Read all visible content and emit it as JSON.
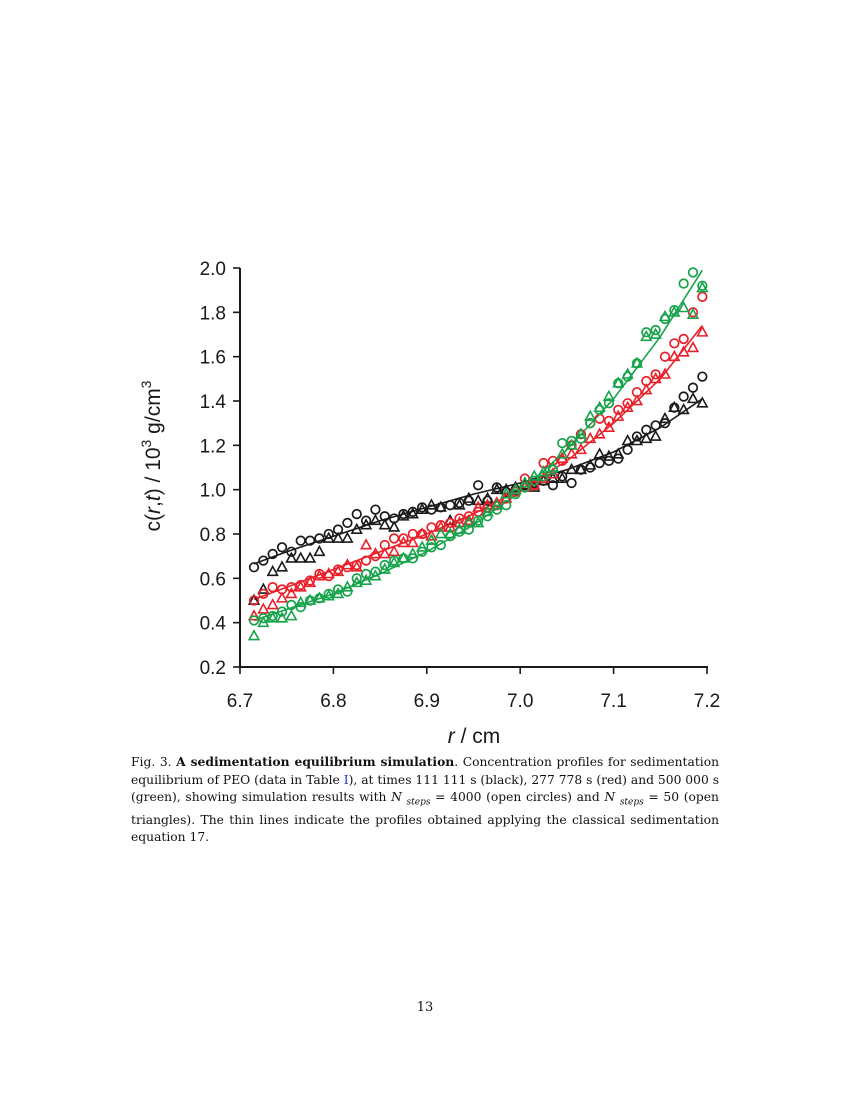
{
  "chart_data": {
    "type": "scatter",
    "xlabel_italic": "r",
    "xlabel_rest": " / cm",
    "ylabel_parts": [
      "c(",
      "r",
      ",",
      "t",
      ")  / 10",
      "3",
      " g/cm",
      "3"
    ],
    "xlim": [
      6.7,
      7.2
    ],
    "ylim": [
      0.2,
      2.0
    ],
    "xticks": [
      "6.7",
      "6.8",
      "6.9",
      "7.0",
      "7.1",
      "7.2"
    ],
    "yticks": [
      "0.2",
      "0.4",
      "0.6",
      "0.8",
      "1.0",
      "1.2",
      "1.4",
      "1.6",
      "1.8",
      "2.0"
    ],
    "grid": false,
    "legend": "none",
    "colors": {
      "black": "#1a1a1a",
      "red": "#e8202a",
      "green": "#16a34a"
    },
    "series": [
      {
        "color": "black",
        "marker": "circle",
        "x": [
          6.715,
          6.725,
          6.735,
          6.745,
          6.755,
          6.765,
          6.775,
          6.785,
          6.795,
          6.805,
          6.815,
          6.825,
          6.835,
          6.845,
          6.855,
          6.865,
          6.875,
          6.885,
          6.895,
          6.905,
          6.915,
          6.925,
          6.935,
          6.945,
          6.955,
          6.965,
          6.975,
          6.985,
          6.995,
          7.005,
          7.015,
          7.025,
          7.035,
          7.045,
          7.055,
          7.065,
          7.075,
          7.085,
          7.095,
          7.105,
          7.115,
          7.125,
          7.135,
          7.145,
          7.155,
          7.165,
          7.175,
          7.185,
          7.195
        ],
        "y": [
          0.65,
          0.68,
          0.71,
          0.74,
          0.72,
          0.77,
          0.77,
          0.78,
          0.8,
          0.82,
          0.85,
          0.89,
          0.86,
          0.91,
          0.88,
          0.87,
          0.89,
          0.9,
          0.92,
          0.91,
          0.92,
          0.93,
          0.94,
          0.95,
          1.02,
          0.95,
          1.01,
          0.99,
          1.0,
          1.02,
          1.03,
          1.04,
          1.02,
          1.06,
          1.03,
          1.09,
          1.1,
          1.12,
          1.13,
          1.14,
          1.18,
          1.24,
          1.27,
          1.29,
          1.3,
          1.37,
          1.42,
          1.46,
          1.51
        ]
      },
      {
        "color": "black",
        "marker": "triangle",
        "x": [
          6.715,
          6.725,
          6.735,
          6.745,
          6.755,
          6.765,
          6.775,
          6.785,
          6.795,
          6.805,
          6.815,
          6.825,
          6.835,
          6.845,
          6.855,
          6.865,
          6.875,
          6.885,
          6.895,
          6.905,
          6.915,
          6.925,
          6.935,
          6.945,
          6.955,
          6.965,
          6.975,
          6.985,
          6.995,
          7.005,
          7.015,
          7.025,
          7.035,
          7.045,
          7.055,
          7.065,
          7.075,
          7.085,
          7.095,
          7.105,
          7.115,
          7.125,
          7.135,
          7.145,
          7.155,
          7.165,
          7.175,
          7.185,
          7.195
        ],
        "y": [
          0.5,
          0.55,
          0.63,
          0.65,
          0.69,
          0.69,
          0.69,
          0.72,
          0.78,
          0.78,
          0.78,
          0.82,
          0.84,
          0.86,
          0.84,
          0.83,
          0.88,
          0.89,
          0.91,
          0.93,
          0.92,
          0.86,
          0.93,
          0.96,
          0.95,
          0.96,
          1.0,
          1.0,
          1.01,
          1.02,
          1.01,
          1.04,
          1.05,
          1.05,
          1.09,
          1.09,
          1.11,
          1.16,
          1.15,
          1.16,
          1.22,
          1.22,
          1.23,
          1.24,
          1.32,
          1.37,
          1.36,
          1.41,
          1.39
        ]
      },
      {
        "color": "red",
        "marker": "circle",
        "x": [
          6.715,
          6.725,
          6.735,
          6.745,
          6.755,
          6.765,
          6.775,
          6.785,
          6.795,
          6.805,
          6.815,
          6.825,
          6.835,
          6.845,
          6.855,
          6.865,
          6.875,
          6.885,
          6.895,
          6.905,
          6.915,
          6.925,
          6.935,
          6.945,
          6.955,
          6.965,
          6.975,
          6.985,
          6.995,
          7.005,
          7.015,
          7.025,
          7.035,
          7.045,
          7.055,
          7.065,
          7.075,
          7.085,
          7.095,
          7.105,
          7.115,
          7.125,
          7.135,
          7.145,
          7.155,
          7.165,
          7.175,
          7.185,
          7.195
        ],
        "y": [
          0.5,
          0.53,
          0.56,
          0.55,
          0.56,
          0.57,
          0.59,
          0.62,
          0.61,
          0.64,
          0.65,
          0.66,
          0.68,
          0.7,
          0.75,
          0.78,
          0.78,
          0.8,
          0.8,
          0.83,
          0.84,
          0.85,
          0.87,
          0.88,
          0.9,
          0.92,
          0.93,
          0.96,
          0.99,
          1.05,
          1.02,
          1.12,
          1.13,
          1.13,
          1.2,
          1.25,
          1.3,
          1.32,
          1.31,
          1.36,
          1.39,
          1.44,
          1.49,
          1.52,
          1.6,
          1.66,
          1.68,
          1.8,
          1.87
        ]
      },
      {
        "color": "red",
        "marker": "triangle",
        "x": [
          6.715,
          6.725,
          6.735,
          6.745,
          6.755,
          6.765,
          6.775,
          6.785,
          6.795,
          6.805,
          6.815,
          6.825,
          6.835,
          6.845,
          6.855,
          6.865,
          6.875,
          6.885,
          6.895,
          6.905,
          6.915,
          6.925,
          6.935,
          6.945,
          6.955,
          6.965,
          6.975,
          6.985,
          6.995,
          7.005,
          7.015,
          7.025,
          7.035,
          7.045,
          7.055,
          7.065,
          7.075,
          7.085,
          7.095,
          7.105,
          7.115,
          7.125,
          7.135,
          7.145,
          7.155,
          7.165,
          7.175,
          7.185,
          7.195
        ],
        "y": [
          0.43,
          0.46,
          0.48,
          0.51,
          0.53,
          0.56,
          0.58,
          0.61,
          0.62,
          0.63,
          0.66,
          0.65,
          0.75,
          0.71,
          0.71,
          0.72,
          0.76,
          0.76,
          0.8,
          0.79,
          0.83,
          0.83,
          0.85,
          0.86,
          0.92,
          0.93,
          0.94,
          0.96,
          1.0,
          1.01,
          1.02,
          1.05,
          1.07,
          1.14,
          1.16,
          1.18,
          1.23,
          1.25,
          1.28,
          1.33,
          1.37,
          1.4,
          1.45,
          1.5,
          1.52,
          1.6,
          1.62,
          1.64,
          1.71
        ]
      },
      {
        "color": "green",
        "marker": "circle",
        "x": [
          6.715,
          6.725,
          6.735,
          6.745,
          6.755,
          6.765,
          6.775,
          6.785,
          6.795,
          6.805,
          6.815,
          6.825,
          6.835,
          6.845,
          6.855,
          6.865,
          6.875,
          6.885,
          6.895,
          6.905,
          6.915,
          6.925,
          6.935,
          6.945,
          6.955,
          6.965,
          6.975,
          6.985,
          6.995,
          7.005,
          7.015,
          7.025,
          7.035,
          7.045,
          7.055,
          7.065,
          7.075,
          7.085,
          7.095,
          7.105,
          7.115,
          7.125,
          7.135,
          7.145,
          7.155,
          7.165,
          7.175,
          7.185,
          7.195
        ],
        "y": [
          0.41,
          0.42,
          0.43,
          0.45,
          0.48,
          0.47,
          0.5,
          0.51,
          0.53,
          0.55,
          0.54,
          0.6,
          0.62,
          0.63,
          0.66,
          0.68,
          0.69,
          0.69,
          0.72,
          0.74,
          0.75,
          0.79,
          0.81,
          0.82,
          0.86,
          0.88,
          0.91,
          0.93,
          0.98,
          1.01,
          1.04,
          1.06,
          1.09,
          1.21,
          1.22,
          1.23,
          1.3,
          1.36,
          1.39,
          1.48,
          1.51,
          1.57,
          1.71,
          1.72,
          1.77,
          1.81,
          1.93,
          1.98,
          1.92
        ]
      },
      {
        "color": "green",
        "marker": "triangle",
        "x": [
          6.715,
          6.725,
          6.735,
          6.745,
          6.755,
          6.765,
          6.775,
          6.785,
          6.795,
          6.805,
          6.815,
          6.825,
          6.835,
          6.845,
          6.855,
          6.865,
          6.875,
          6.885,
          6.895,
          6.905,
          6.915,
          6.925,
          6.935,
          6.945,
          6.955,
          6.965,
          6.975,
          6.985,
          6.995,
          7.005,
          7.015,
          7.025,
          7.035,
          7.045,
          7.055,
          7.065,
          7.075,
          7.085,
          7.095,
          7.105,
          7.115,
          7.125,
          7.135,
          7.145,
          7.155,
          7.165,
          7.175,
          7.185,
          7.195
        ],
        "y": [
          0.34,
          0.4,
          0.42,
          0.42,
          0.43,
          0.49,
          0.5,
          0.51,
          0.52,
          0.53,
          0.56,
          0.58,
          0.59,
          0.61,
          0.64,
          0.67,
          0.69,
          0.71,
          0.74,
          0.77,
          0.8,
          0.8,
          0.82,
          0.85,
          0.85,
          0.9,
          0.93,
          0.98,
          1.0,
          1.03,
          1.06,
          1.08,
          1.1,
          1.16,
          1.2,
          1.25,
          1.33,
          1.37,
          1.42,
          1.48,
          1.52,
          1.57,
          1.69,
          1.7,
          1.78,
          1.8,
          1.82,
          1.79,
          1.91
        ]
      }
    ],
    "lines": [
      {
        "color": "black",
        "x": [
          6.715,
          6.75,
          6.8,
          6.85,
          6.9,
          6.95,
          7.0,
          7.05,
          7.1,
          7.15,
          7.195
        ],
        "y": [
          0.665,
          0.72,
          0.79,
          0.86,
          0.92,
          0.98,
          1.03,
          1.09,
          1.17,
          1.28,
          1.41
        ]
      },
      {
        "color": "red",
        "x": [
          6.715,
          6.75,
          6.8,
          6.85,
          6.9,
          6.95,
          7.0,
          7.05,
          7.1,
          7.15,
          7.195
        ],
        "y": [
          0.505,
          0.56,
          0.64,
          0.72,
          0.8,
          0.89,
          1.0,
          1.13,
          1.3,
          1.5,
          1.74
        ]
      },
      {
        "color": "green",
        "x": [
          6.715,
          6.75,
          6.8,
          6.85,
          6.9,
          6.95,
          7.0,
          7.05,
          7.1,
          7.15,
          7.195
        ],
        "y": [
          0.41,
          0.46,
          0.53,
          0.62,
          0.72,
          0.84,
          0.99,
          1.18,
          1.41,
          1.69,
          1.99
        ]
      }
    ]
  },
  "caption": {
    "lead": "Fig. 3. ",
    "title": "A sedimentation equilibrium simulation",
    "body_1": ". Concentration profiles for sedimentation equilibrium of PEO (data in Table ",
    "table_ref": "I",
    "body_2": "), at times 111 111 s (black), 277 778 s (red) and 500 000 s (green), showing simulation results with ",
    "n1": "N",
    "sub1": "steps",
    "val1": " = 4000 (open circles) and ",
    "n2": "N",
    "sub2": "steps",
    "val2": " = 50 (open triangles). The thin lines indicate the profiles obtained applying the classical sedimentation equation 17."
  },
  "page_number": "13"
}
